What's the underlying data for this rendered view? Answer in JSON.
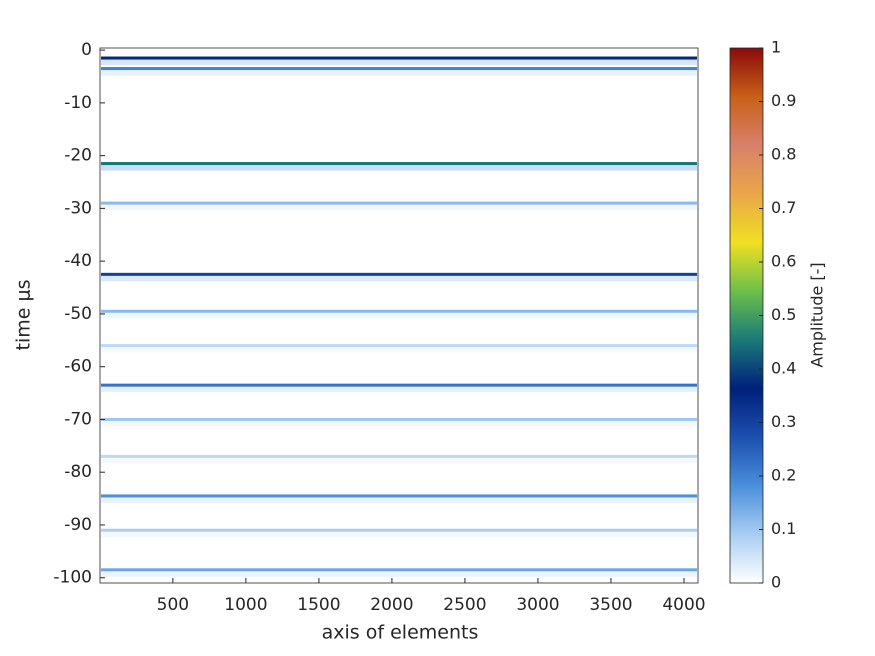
{
  "chart_data": {
    "type": "heatmap-bands",
    "xlabel": "axis of elements",
    "ylabel": "time μs",
    "colorbar_label": "Amplitude [-]",
    "xlim": [
      1,
      4096
    ],
    "xticks": [
      500,
      1000,
      1500,
      2000,
      2500,
      3000,
      3500,
      4000
    ],
    "ylim": [
      -101,
      0.4
    ],
    "yticks": [
      0,
      -10,
      -20,
      -30,
      -40,
      -50,
      -60,
      -70,
      -80,
      -90,
      -100
    ],
    "clim": [
      0,
      1
    ],
    "cticks": [
      0,
      0.1,
      0.2,
      0.3,
      0.4,
      0.5,
      0.6,
      0.7,
      0.8,
      0.9,
      1
    ],
    "colormap": [
      "#ffffff",
      "#a8cdf2",
      "#4a8fdb",
      "#1c4fb0",
      "#00207a",
      "#1a7a78",
      "#6cc04a",
      "#f0e020",
      "#eaa64a",
      "#d8806a",
      "#c86018",
      "#8b0a0a"
    ],
    "band_times": [
      -1.5,
      -3.5,
      -21.5,
      -29,
      -42.5,
      -49.5,
      -56,
      -63.5,
      -70,
      -77,
      -84.5,
      -91,
      -98.5
    ],
    "band_amplitudes": [
      0.35,
      0.2,
      0.45,
      0.12,
      0.3,
      0.12,
      0.07,
      0.22,
      0.1,
      0.07,
      0.18,
      0.09,
      0.15
    ]
  }
}
